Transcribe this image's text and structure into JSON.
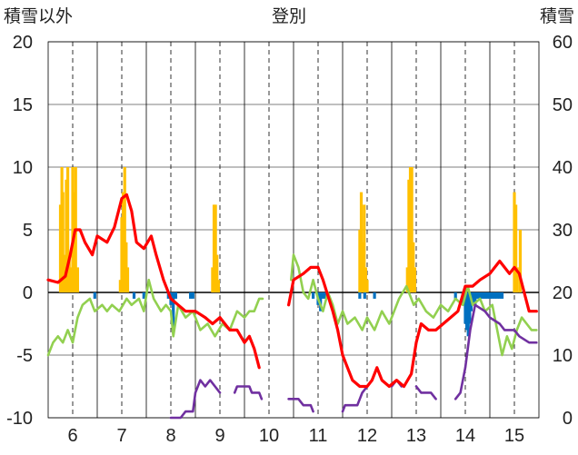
{
  "chart_data": {
    "type": "line",
    "title": "登別",
    "ylabel_left": "積雪以外",
    "ylabel_right": "積雪",
    "y_left_range": [
      -10,
      20
    ],
    "y_left_ticks": [
      "20",
      "15",
      "10",
      "5",
      "0",
      "-5",
      "-10"
    ],
    "y_right_range": [
      0,
      60
    ],
    "y_right_ticks": [
      "60",
      "50",
      "40",
      "30",
      "20",
      "10",
      "0"
    ],
    "x_range": [
      5.5,
      15.5
    ],
    "x_ticks": [
      "6",
      "7",
      "8",
      "9",
      "10",
      "11",
      "12",
      "13",
      "14",
      "15"
    ],
    "grid": "vertical dashed lines at each day, solid lines between days",
    "colors": {
      "temperature": "#ff0000",
      "green_series": "#92d050",
      "snow_depth": "#7030a0",
      "precip_bars": "#ffc000",
      "blue_bars": "#0070c0",
      "grid": "#000000"
    },
    "series": [
      {
        "axis": "left",
        "color": "#ff0000",
        "points": [
          [
            5.5,
            1.0
          ],
          [
            5.7,
            0.8
          ],
          [
            5.85,
            1.3
          ],
          [
            5.95,
            3.0
          ],
          [
            6.05,
            5.0
          ],
          [
            6.15,
            5.0
          ],
          [
            6.25,
            4.0
          ],
          [
            6.4,
            3.0
          ],
          [
            6.5,
            4.5
          ],
          [
            6.7,
            4.0
          ],
          [
            6.85,
            5.2
          ],
          [
            7.0,
            7.5
          ],
          [
            7.1,
            7.8
          ],
          [
            7.2,
            6.5
          ],
          [
            7.3,
            4.0
          ],
          [
            7.45,
            3.5
          ],
          [
            7.6,
            4.5
          ],
          [
            7.7,
            3.0
          ],
          [
            7.85,
            1.0
          ],
          [
            8.0,
            -0.5
          ],
          [
            8.15,
            -1.0
          ],
          [
            8.3,
            -1.5
          ],
          [
            8.5,
            -1.5
          ],
          [
            8.7,
            -2.0
          ],
          [
            8.85,
            -2.5
          ],
          [
            9.0,
            -2.0
          ],
          [
            9.2,
            -3.0
          ],
          [
            9.35,
            -3.0
          ],
          [
            9.5,
            -4.0
          ],
          [
            9.6,
            -3.5
          ],
          [
            9.7,
            -4.5
          ],
          [
            9.8,
            -6.0
          ],
          [
            10.4,
            -1.0
          ],
          [
            10.5,
            1.0
          ],
          [
            10.7,
            1.5
          ],
          [
            10.85,
            2.0
          ],
          [
            11.0,
            2.0
          ],
          [
            11.1,
            1.0
          ],
          [
            11.3,
            -1.5
          ],
          [
            11.4,
            -3.0
          ],
          [
            11.5,
            -5.0
          ],
          [
            11.6,
            -6.0
          ],
          [
            11.7,
            -7.0
          ],
          [
            11.85,
            -7.5
          ],
          [
            12.0,
            -7.5
          ],
          [
            12.1,
            -7.0
          ],
          [
            12.2,
            -6.0
          ],
          [
            12.3,
            -7.0
          ],
          [
            12.45,
            -7.5
          ],
          [
            12.6,
            -7.0
          ],
          [
            12.75,
            -7.5
          ],
          [
            12.9,
            -6.5
          ],
          [
            13.0,
            -4.0
          ],
          [
            13.1,
            -2.5
          ],
          [
            13.25,
            -3.0
          ],
          [
            13.4,
            -3.0
          ],
          [
            13.55,
            -2.5
          ],
          [
            13.7,
            -2.0
          ],
          [
            13.85,
            -1.5
          ],
          [
            14.0,
            0.5
          ],
          [
            14.15,
            0.5
          ],
          [
            14.3,
            1.0
          ],
          [
            14.5,
            1.5
          ],
          [
            14.6,
            2.0
          ],
          [
            14.7,
            2.5
          ],
          [
            14.8,
            2.0
          ],
          [
            14.9,
            1.5
          ],
          [
            15.0,
            2.0
          ],
          [
            15.1,
            1.5
          ],
          [
            15.2,
            0.0
          ],
          [
            15.3,
            -1.5
          ],
          [
            15.45,
            -1.5
          ]
        ]
      },
      {
        "axis": "left",
        "color": "#92d050",
        "points": [
          [
            5.5,
            -5.0
          ],
          [
            5.6,
            -4.0
          ],
          [
            5.7,
            -3.5
          ],
          [
            5.8,
            -4.0
          ],
          [
            5.9,
            -3.0
          ],
          [
            6.0,
            -4.0
          ],
          [
            6.1,
            -2.0
          ],
          [
            6.2,
            -1.0
          ],
          [
            6.35,
            -0.5
          ],
          [
            6.45,
            -1.5
          ],
          [
            6.6,
            -1.0
          ],
          [
            6.7,
            -1.5
          ],
          [
            6.8,
            -1.0
          ],
          [
            6.95,
            -1.5
          ],
          [
            7.1,
            -0.5
          ],
          [
            7.2,
            -1.0
          ],
          [
            7.35,
            -0.5
          ],
          [
            7.45,
            -1.5
          ],
          [
            7.55,
            1.0
          ],
          [
            7.65,
            -0.5
          ],
          [
            7.8,
            -1.5
          ],
          [
            7.9,
            -1.0
          ],
          [
            8.0,
            -1.5
          ],
          [
            8.05,
            -3.5
          ],
          [
            8.15,
            -1.0
          ],
          [
            8.3,
            -2.0
          ],
          [
            8.45,
            -1.5
          ],
          [
            8.6,
            -3.0
          ],
          [
            8.75,
            -2.5
          ],
          [
            8.9,
            -3.5
          ],
          [
            9.05,
            -2.5
          ],
          [
            9.2,
            -3.0
          ],
          [
            9.35,
            -1.5
          ],
          [
            9.5,
            -2.0
          ],
          [
            9.6,
            -1.5
          ],
          [
            9.7,
            -1.5
          ],
          [
            9.8,
            -0.5
          ],
          [
            9.87,
            -0.5
          ],
          [
            10.45,
            1.0
          ],
          [
            10.5,
            3.0
          ],
          [
            10.6,
            2.0
          ],
          [
            10.7,
            0.0
          ],
          [
            10.8,
            -0.5
          ],
          [
            10.9,
            1.0
          ],
          [
            11.0,
            -0.5
          ],
          [
            11.1,
            -1.5
          ],
          [
            11.2,
            0.0
          ],
          [
            11.3,
            -1.0
          ],
          [
            11.4,
            -2.5
          ],
          [
            11.5,
            -1.5
          ],
          [
            11.6,
            -2.5
          ],
          [
            11.75,
            -2.0
          ],
          [
            11.9,
            -3.0
          ],
          [
            12.0,
            -2.0
          ],
          [
            12.15,
            -3.0
          ],
          [
            12.3,
            -1.5
          ],
          [
            12.45,
            -2.5
          ],
          [
            12.55,
            -1.5
          ],
          [
            12.65,
            -0.5
          ],
          [
            12.8,
            0.5
          ],
          [
            12.95,
            -1.0
          ],
          [
            13.05,
            -0.5
          ],
          [
            13.2,
            -1.5
          ],
          [
            13.35,
            -2.0
          ],
          [
            13.5,
            -1.0
          ],
          [
            13.65,
            -1.5
          ],
          [
            13.8,
            -0.5
          ],
          [
            13.95,
            -1.0
          ],
          [
            14.05,
            0.5
          ],
          [
            14.15,
            -1.0
          ],
          [
            14.3,
            -0.5
          ],
          [
            14.4,
            -1.5
          ],
          [
            14.55,
            -1.0
          ],
          [
            14.65,
            -3.0
          ],
          [
            14.75,
            -5.0
          ],
          [
            14.85,
            -3.5
          ],
          [
            14.95,
            -4.5
          ],
          [
            15.05,
            -3.0
          ],
          [
            15.15,
            -2.0
          ],
          [
            15.25,
            -2.5
          ],
          [
            15.35,
            -3.0
          ],
          [
            15.45,
            -3.0
          ]
        ]
      },
      {
        "axis": "right",
        "color": "#7030a0",
        "points": [
          [
            5.5,
            0
          ],
          [
            8.0,
            0
          ],
          [
            8.1,
            0
          ],
          [
            8.2,
            0
          ],
          [
            8.3,
            1
          ],
          [
            8.45,
            1
          ],
          [
            8.5,
            4
          ],
          [
            8.6,
            6
          ],
          [
            8.7,
            5
          ],
          [
            8.8,
            6
          ],
          [
            8.9,
            5
          ],
          [
            9.0,
            4
          ],
          [
            9.3,
            4
          ],
          [
            9.35,
            5
          ],
          [
            9.6,
            5
          ],
          [
            9.65,
            4
          ],
          [
            9.8,
            4
          ],
          [
            9.85,
            3
          ],
          [
            10.4,
            3
          ],
          [
            10.6,
            3
          ],
          [
            10.7,
            2
          ],
          [
            10.85,
            2
          ],
          [
            10.9,
            1
          ],
          [
            11.5,
            1
          ],
          [
            11.55,
            2
          ],
          [
            11.8,
            2
          ],
          [
            11.85,
            3
          ],
          [
            11.9,
            4
          ],
          [
            12.0,
            5
          ],
          [
            12.5,
            5
          ],
          [
            12.6,
            6
          ],
          [
            12.7,
            5
          ],
          [
            13.0,
            5
          ],
          [
            13.1,
            4
          ],
          [
            13.3,
            4
          ],
          [
            13.4,
            3
          ],
          [
            13.8,
            3
          ],
          [
            13.9,
            4
          ],
          [
            14.0,
            8
          ],
          [
            14.1,
            14
          ],
          [
            14.2,
            18
          ],
          [
            14.4,
            17
          ],
          [
            14.5,
            16
          ],
          [
            14.7,
            15
          ],
          [
            14.8,
            14
          ],
          [
            15.0,
            14
          ],
          [
            15.1,
            13
          ],
          [
            15.3,
            12
          ],
          [
            15.45,
            12
          ]
        ]
      }
    ],
    "bars_left": [
      {
        "color": "#ffc000",
        "x": [
          5.75,
          5.78,
          5.8,
          5.84,
          5.87,
          5.9,
          5.93,
          5.97,
          6.0,
          6.03,
          6.06,
          6.1,
          6.97,
          7.0,
          7.03,
          7.06,
          7.09,
          7.12,
          8.85,
          8.88,
          8.91,
          8.94,
          8.97,
          11.85,
          11.88,
          11.91,
          11.94,
          11.97,
          12.0,
          12.82,
          12.85,
          12.88,
          12.91,
          12.94,
          12.97,
          15.0,
          15.03,
          15.06,
          15.12
        ],
        "values": [
          7,
          10,
          8,
          3,
          9,
          10,
          3,
          2,
          10,
          8,
          10,
          2,
          1,
          6,
          8,
          10,
          4,
          2,
          2,
          7,
          7,
          3,
          1,
          5,
          8,
          4,
          7,
          2,
          1,
          2,
          9,
          10,
          10,
          4,
          2,
          8,
          7,
          2,
          5
        ]
      },
      {
        "color": "#0070c0",
        "x": [
          6.45,
          7.25,
          7.45,
          7.95,
          8.0,
          8.05,
          8.1,
          8.4,
          8.45,
          10.9,
          11.0,
          11.05,
          11.1,
          11.15,
          11.85,
          11.95,
          12.15,
          13.8,
          13.95,
          14.0,
          14.03,
          14.06,
          14.09,
          14.12,
          14.15,
          14.2,
          14.25,
          14.3,
          14.35,
          14.4,
          14.45,
          14.5,
          14.55,
          14.6,
          14.65,
          14.7,
          14.75
        ],
        "values": [
          -0.5,
          -0.5,
          -0.5,
          -0.5,
          -1.0,
          -3.0,
          -0.5,
          -0.5,
          -0.5,
          -0.5,
          -1.0,
          -1.5,
          -0.5,
          -0.5,
          -0.5,
          -0.5,
          -0.5,
          -0.5,
          -1.0,
          -2.5,
          -3.0,
          -3.5,
          -2.5,
          -1.5,
          -1.0,
          -1.0,
          -0.5,
          -0.5,
          -0.5,
          -0.5,
          -0.5,
          -0.5,
          -0.5,
          -0.5,
          -0.5,
          -0.5,
          -0.5
        ]
      }
    ]
  }
}
